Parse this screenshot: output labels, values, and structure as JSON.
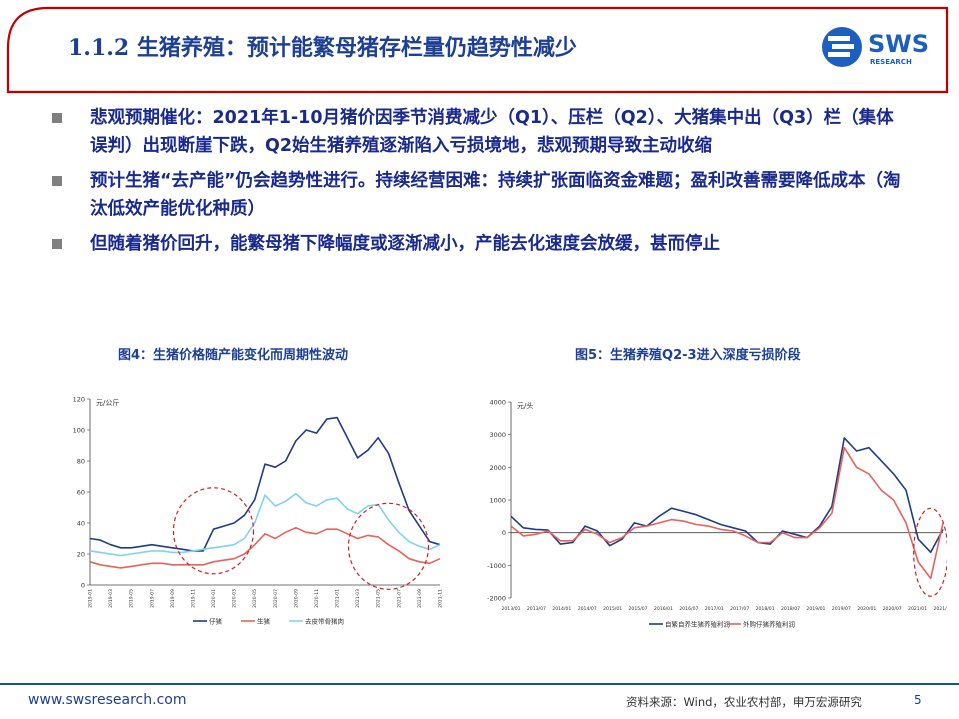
{
  "slide": {
    "title": "1.1.2 生猪养殖：预计能繁母猪存栏量仍趋势性减少",
    "logo_text": "SWS",
    "logo_subtext": "RESEARCH",
    "colors": {
      "accent_red": "#c00000",
      "brand_blue": "#1d3f94",
      "text_blue": "#1a2a8c"
    }
  },
  "bullets": [
    {
      "text": "悲观预期催化：2021年1-10月猪价因季节消费减少（Q1）、压栏（Q2）、大猪集中出（Q3）栏（集体误判）出现断崖下跌，Q2始生猪养殖逐渐陷入亏损境地，悲观预期导致主动收缩"
    },
    {
      "text": "预计生猪“去产能”仍会趋势性进行。持续经营困难：持续扩张面临资金难题；盈利改善需要降低成本（淘汰低效产能优化种质）"
    },
    {
      "text": "但随着猪价回升，能繁母猪下降幅度或逐渐减小，产能去化速度会放缓，甚而停止"
    }
  ],
  "figure_left": {
    "caption": "图4：生猪价格随产能变化而周期性波动"
  },
  "figure_right": {
    "caption": "图5：生猪养殖Q2-3进入深度亏损阶段"
  },
  "chart_data": [
    {
      "type": "line",
      "ylabel": "元/公斤",
      "ylim": [
        0,
        120
      ],
      "yticks": [
        0,
        20,
        40,
        60,
        80,
        100,
        120
      ],
      "x": [
        "2019-01",
        "2019-02",
        "2019-03",
        "2019-04",
        "2019-05",
        "2019-06",
        "2019-07",
        "2019-08",
        "2019-09",
        "2019-10",
        "2019-11",
        "2019-12",
        "2020-01",
        "2020-02",
        "2020-03",
        "2020-04",
        "2020-05",
        "2020-06",
        "2020-07",
        "2020-08",
        "2020-09",
        "2020-10",
        "2020-11",
        "2020-12",
        "2021-01",
        "2021-02",
        "2021-03",
        "2021-04",
        "2021-05",
        "2021-06",
        "2021-07",
        "2021-08",
        "2021-09",
        "2021-10",
        "2021-11"
      ],
      "xtick_labels": [
        "2019-01",
        "2019-03",
        "2019-05",
        "2019-07",
        "2019-09",
        "2019-11",
        "2020-01",
        "2020-03",
        "2020-05",
        "2020-07",
        "2020-09",
        "2020-11",
        "2021-01",
        "2021-03",
        "2021-05",
        "2021-07",
        "2021-09",
        "2021-11"
      ],
      "series": [
        {
          "name": "仔猪",
          "color": "#1f3c88",
          "values": [
            30,
            29,
            26,
            24,
            24,
            25,
            26,
            25,
            24,
            23,
            22,
            22,
            36,
            38,
            40,
            45,
            55,
            78,
            76,
            80,
            93,
            100,
            98,
            107,
            108,
            95,
            82,
            87,
            95,
            85,
            66,
            48,
            38,
            28,
            26
          ]
        },
        {
          "name": "生猪",
          "color": "#e8625c",
          "values": [
            15,
            13,
            12,
            11,
            12,
            13,
            14,
            14,
            13,
            13,
            13,
            13,
            15,
            16,
            17,
            20,
            26,
            33,
            30,
            34,
            37,
            34,
            33,
            36,
            36,
            33,
            30,
            32,
            31,
            26,
            22,
            17,
            15,
            14,
            17
          ]
        },
        {
          "name": "去皮带骨猪肉",
          "color": "#7fd3ee",
          "values": [
            22,
            21,
            20,
            19,
            20,
            21,
            22,
            22,
            21,
            21,
            22,
            23,
            24,
            25,
            26,
            30,
            40,
            58,
            51,
            54,
            59,
            53,
            51,
            55,
            56,
            49,
            46,
            51,
            52,
            42,
            34,
            28,
            25,
            23,
            26
          ]
        }
      ],
      "highlight_circles": 2
    },
    {
      "type": "line",
      "ylabel": "元/头",
      "ylim": [
        -2000,
        4000
      ],
      "yticks": [
        -2000,
        -1000,
        0,
        1000,
        2000,
        3000,
        4000
      ],
      "x": [
        "2013-01",
        "2013-04",
        "2013-07",
        "2013-10",
        "2014-01",
        "2014-04",
        "2014-07",
        "2014-10",
        "2015-01",
        "2015-04",
        "2015-07",
        "2015-10",
        "2016-01",
        "2016-04",
        "2016-07",
        "2016-10",
        "2017-01",
        "2017-04",
        "2017-07",
        "2017-10",
        "2018-01",
        "2018-04",
        "2018-07",
        "2018-10",
        "2019-01",
        "2019-04",
        "2019-07",
        "2019-10",
        "2020-01",
        "2020-04",
        "2020-07",
        "2020-10",
        "2021-01",
        "2021-04",
        "2021-07",
        "2021-10"
      ],
      "xtick_labels": [
        "2013/01",
        "2013/07",
        "2014/01",
        "2014/07",
        "2015/01",
        "2015/07",
        "2016/01",
        "2016/07",
        "2017/01",
        "2017/07",
        "2018/01",
        "2018/07",
        "2019/01",
        "2019/07",
        "2020/01",
        "2020/07",
        "2021/01",
        "2021/07"
      ],
      "series": [
        {
          "name": "自繁自养生猪养殖利润",
          "color": "#1f3c88",
          "values": [
            500,
            150,
            100,
            80,
            -350,
            -300,
            200,
            50,
            -400,
            -200,
            300,
            200,
            500,
            750,
            650,
            550,
            400,
            250,
            150,
            50,
            -300,
            -350,
            50,
            -50,
            -150,
            200,
            800,
            2900,
            2500,
            2600,
            2200,
            1800,
            1300,
            -200,
            -600,
            100
          ]
        },
        {
          "name": "外购仔猪养殖利润",
          "color": "#e8625c",
          "values": [
            200,
            -100,
            -50,
            50,
            -250,
            -250,
            100,
            -50,
            -300,
            -150,
            150,
            200,
            300,
            400,
            350,
            250,
            200,
            100,
            50,
            -100,
            -300,
            -300,
            0,
            -150,
            -150,
            150,
            600,
            2600,
            2000,
            1800,
            1300,
            1000,
            300,
            -900,
            -1400,
            300
          ]
        }
      ],
      "highlight_circles": 1
    }
  ],
  "footer": {
    "url": "www.swsresearch.com",
    "source": "资料来源：Wind，农业农村部，申万宏源研究",
    "page": "5"
  }
}
